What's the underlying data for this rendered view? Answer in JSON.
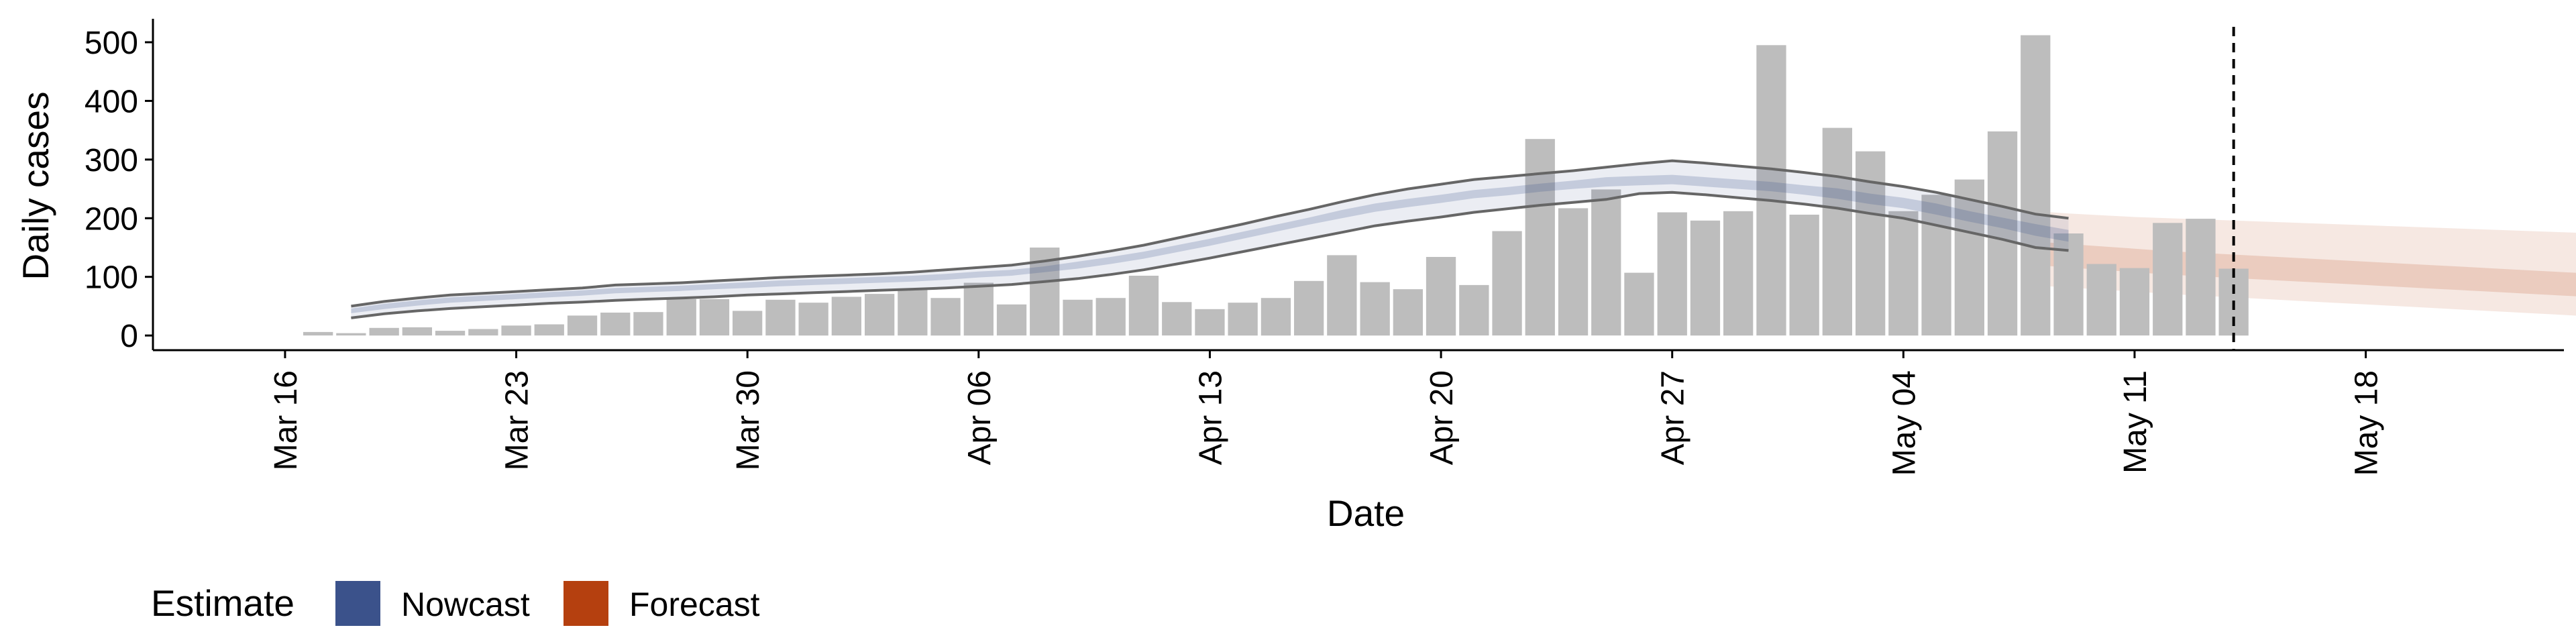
{
  "chart_data": {
    "type": "bar",
    "xlabel": "Date",
    "ylabel": "Daily cases",
    "xlim": [
      "2020-03-12",
      "2020-05-24"
    ],
    "ylim": [
      -25,
      540
    ],
    "x_ticks": [
      {
        "date": "2020-03-16",
        "label": "Mar 16"
      },
      {
        "date": "2020-03-23",
        "label": "Mar 23"
      },
      {
        "date": "2020-03-30",
        "label": "Mar 30"
      },
      {
        "date": "2020-04-06",
        "label": "Apr 06"
      },
      {
        "date": "2020-04-13",
        "label": "Apr 13"
      },
      {
        "date": "2020-04-20",
        "label": "Apr 20"
      },
      {
        "date": "2020-04-27",
        "label": "Apr 27"
      },
      {
        "date": "2020-05-04",
        "label": "May 04"
      },
      {
        "date": "2020-05-11",
        "label": "May 11"
      },
      {
        "date": "2020-05-18",
        "label": "May 18"
      }
    ],
    "y_ticks": [
      0,
      100,
      200,
      300,
      400,
      500
    ],
    "grid": false,
    "bars": {
      "start_date": "2020-03-17",
      "color": "#bdbdbd",
      "values": [
        6,
        4,
        13,
        14,
        8,
        11,
        17,
        19,
        34,
        39,
        40,
        62,
        62,
        42,
        61,
        56,
        66,
        71,
        78,
        64,
        90,
        53,
        150,
        61,
        64,
        102,
        57,
        45,
        56,
        64,
        93,
        137,
        91,
        79,
        134,
        86,
        178,
        335,
        217,
        249,
        107,
        210,
        196,
        212,
        495,
        206,
        354,
        314,
        212,
        240,
        266,
        348,
        512,
        174,
        122,
        115,
        192,
        199,
        114
      ]
    },
    "nowcast": {
      "start_date": "2020-03-18",
      "color": "#3b528b",
      "median": [
        42,
        50,
        56,
        61,
        64,
        67,
        70,
        73,
        77,
        79,
        81,
        84,
        86,
        89,
        91,
        93,
        95,
        97,
        100,
        104,
        107,
        113,
        120,
        128,
        137,
        148,
        159,
        171,
        183,
        195,
        207,
        218,
        226,
        233,
        241,
        246,
        252,
        257,
        262,
        264,
        266,
        262,
        258,
        254,
        248,
        242,
        233,
        226,
        215,
        203,
        192,
        180,
        170
      ],
      "inner_low": [
        38,
        45,
        51,
        56,
        59,
        62,
        65,
        68,
        72,
        74,
        76,
        79,
        81,
        84,
        86,
        88,
        90,
        92,
        95,
        99,
        102,
        108,
        114,
        122,
        131,
        142,
        153,
        165,
        177,
        189,
        200,
        211,
        219,
        226,
        234,
        239,
        245,
        250,
        254,
        256,
        258,
        254,
        250,
        246,
        240,
        233,
        224,
        217,
        206,
        194,
        183,
        170,
        160
      ],
      "inner_high": [
        46,
        54,
        60,
        65,
        68,
        71,
        74,
        77,
        81,
        83,
        85,
        88,
        91,
        94,
        96,
        98,
        100,
        102,
        105,
        109,
        112,
        118,
        126,
        134,
        143,
        154,
        165,
        177,
        189,
        201,
        214,
        225,
        233,
        240,
        248,
        253,
        259,
        264,
        270,
        272,
        274,
        270,
        266,
        262,
        256,
        251,
        242,
        235,
        225,
        212,
        201,
        190,
        180
      ],
      "outer_low": [
        30,
        37,
        42,
        46,
        49,
        52,
        55,
        57,
        60,
        62,
        64,
        66,
        69,
        71,
        73,
        75,
        77,
        79,
        81,
        84,
        87,
        92,
        97,
        104,
        112,
        122,
        132,
        143,
        154,
        165,
        176,
        187,
        195,
        202,
        210,
        216,
        222,
        227,
        232,
        242,
        244,
        240,
        235,
        230,
        224,
        217,
        208,
        200,
        188,
        176,
        164,
        150,
        145
      ],
      "outer_high": [
        50,
        58,
        64,
        69,
        72,
        75,
        78,
        81,
        86,
        88,
        90,
        93,
        96,
        99,
        101,
        103,
        105,
        108,
        112,
        116,
        120,
        127,
        135,
        144,
        154,
        166,
        178,
        190,
        203,
        215,
        228,
        240,
        250,
        258,
        266,
        271,
        276,
        281,
        287,
        293,
        298,
        294,
        289,
        284,
        278,
        271,
        262,
        254,
        244,
        232,
        220,
        207,
        200
      ]
    },
    "forecast": {
      "start_date": "2020-05-08",
      "color": "#b5400f",
      "median": [
        138,
        134,
        130,
        126,
        122,
        119,
        116,
        113,
        110,
        107,
        104,
        101,
        98,
        95,
        92,
        89,
        86,
        83,
        80,
        76,
        72,
        68,
        64,
        60,
        56,
        52,
        48
      ],
      "inner_low": [
        120,
        116,
        112,
        108,
        104,
        101,
        98,
        95,
        92,
        89,
        86,
        83,
        80,
        77,
        74,
        71,
        68,
        65,
        62,
        59,
        56,
        52,
        49,
        46,
        43,
        40,
        37
      ],
      "inner_high": [
        160,
        156,
        152,
        148,
        144,
        141,
        138,
        135,
        132,
        129,
        126,
        123,
        120,
        117,
        114,
        111,
        108,
        105,
        102,
        99,
        96,
        93,
        90,
        87,
        84,
        81,
        78
      ],
      "outer_low": [
        85,
        82,
        78,
        75,
        71,
        68,
        65,
        62,
        59,
        56,
        53,
        50,
        47,
        44,
        41,
        38,
        35,
        32,
        30,
        28,
        26,
        24,
        22,
        20,
        18,
        16,
        15
      ],
      "outer_high": [
        212,
        208,
        205,
        202,
        200,
        198,
        196,
        194,
        192,
        190,
        188,
        186,
        184,
        182,
        180,
        178,
        176,
        174,
        172,
        170,
        168,
        166,
        164,
        162,
        160,
        158,
        156
      ]
    },
    "vline_date": "2020-05-14",
    "legend": {
      "title": "Estimate",
      "placement": "bottom-left",
      "items": [
        {
          "label": "Nowcast",
          "color": "#3b528b"
        },
        {
          "label": "Forecast",
          "color": "#b5400f"
        }
      ]
    }
  }
}
